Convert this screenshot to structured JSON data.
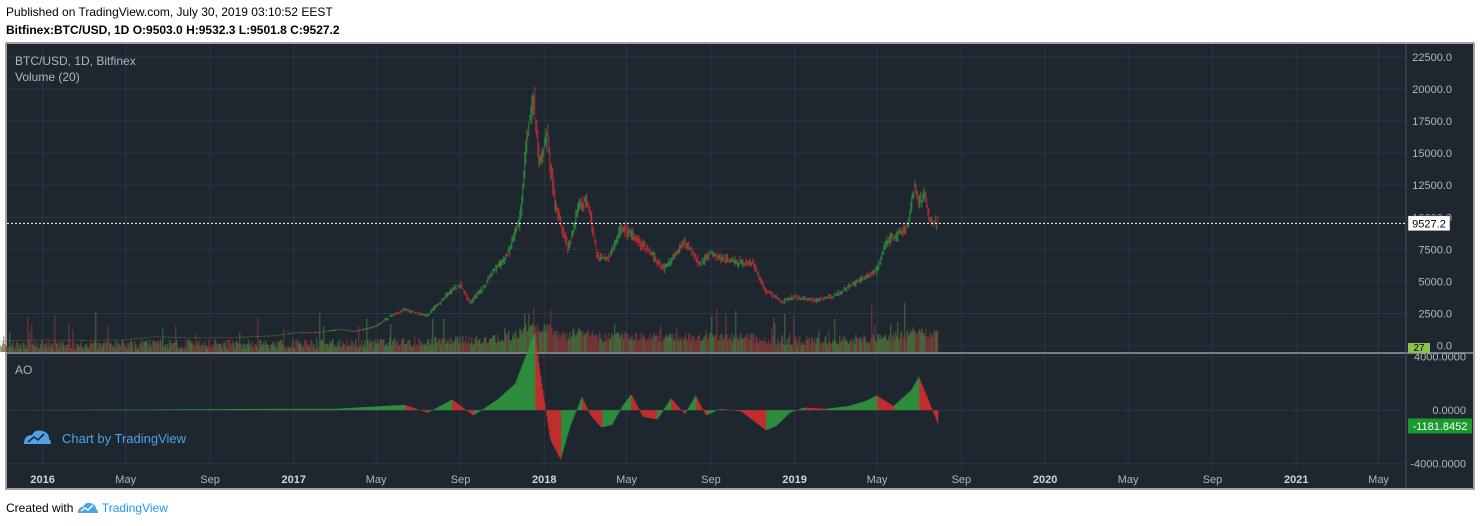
{
  "header": {
    "published": "Published on TradingView.com, July 30, 2019 03:10:52 EEST",
    "symbol": "Bitfinex:BTC/USD, 1D",
    "o_label": "O:",
    "o": "9503.0",
    "h_label": "H:",
    "h": "9532.3",
    "l_label": "L:",
    "l": "9501.8",
    "c_label": "C:",
    "c": "9527.2"
  },
  "panes": {
    "main_title": "BTC/USD, 1D, Bitfinex",
    "volume_title": "Volume (20)",
    "ao_title": "AO"
  },
  "watermark": "Chart by TradingView",
  "footer": {
    "created_with": "Created with",
    "brand": "TradingView"
  },
  "colors": {
    "background": "#1e2630",
    "grid": "#2c3541",
    "up": "#2e9a3e",
    "down": "#d32f2f",
    "price_label": "#ffffff",
    "ao_label": "#1a9a2c",
    "axis_text": "#b2b5be"
  },
  "chart_data": [
    {
      "type": "candlestick",
      "title": "BTC/USD, 1D, Bitfinex",
      "y_axis_ticks": [
        0.0,
        2500.0,
        5000.0,
        7500.0,
        10000.0,
        12500.0,
        15000.0,
        17500.0,
        20000.0,
        22500.0
      ],
      "ylim": [
        -500,
        23500
      ],
      "last_price": 9527.2,
      "last_price_label": "9527.2",
      "x_axis_labels": [
        "2016",
        "May",
        "Sep",
        "2017",
        "May",
        "Sep",
        "2018",
        "May",
        "Sep",
        "2019",
        "May",
        "Sep",
        "2020",
        "May",
        "Sep",
        "2021",
        "May"
      ],
      "x_axis_bold": [
        "2016",
        "2017",
        "2018",
        "2019",
        "2020",
        "2021"
      ],
      "series": [
        {
          "x": [
            "2015-11-01",
            "2015-12-01",
            "2016-01-01",
            "2016-03-01",
            "2016-05-01",
            "2016-06-15",
            "2016-08-01",
            "2016-10-01",
            "2016-12-01",
            "2017-01-05",
            "2017-02-01",
            "2017-03-10",
            "2017-04-01",
            "2017-05-01",
            "2017-05-25",
            "2017-06-12",
            "2017-07-15",
            "2017-08-15",
            "2017-09-01",
            "2017-09-15",
            "2017-10-01",
            "2017-10-20",
            "2017-11-10",
            "2017-11-28",
            "2017-12-07",
            "2017-12-17",
            "2017-12-25",
            "2018-01-06",
            "2018-01-17",
            "2018-02-06",
            "2018-02-20",
            "2018-03-05",
            "2018-03-20",
            "2018-04-06",
            "2018-04-25",
            "2018-05-15",
            "2018-06-01",
            "2018-06-25",
            "2018-07-25",
            "2018-08-15",
            "2018-09-01",
            "2018-10-01",
            "2018-11-01",
            "2018-11-20",
            "2018-12-15",
            "2019-01-01",
            "2019-02-01",
            "2019-03-01",
            "2019-04-03",
            "2019-05-01",
            "2019-05-15",
            "2019-06-01",
            "2019-06-15",
            "2019-06-26",
            "2019-07-02",
            "2019-07-10",
            "2019-07-17",
            "2019-07-30"
          ],
          "values": [
            330,
            420,
            430,
            420,
            450,
            700,
            600,
            610,
            760,
            1000,
            1000,
            1250,
            1100,
            1500,
            2400,
            2800,
            2300,
            4100,
            4800,
            3300,
            4300,
            5800,
            7200,
            10000,
            16000,
            19500,
            14000,
            16500,
            11000,
            7500,
            10800,
            11400,
            7000,
            6800,
            9300,
            8300,
            7500,
            6000,
            8100,
            6400,
            7200,
            6600,
            6400,
            4300,
            3400,
            3800,
            3500,
            3900,
            5000,
            5800,
            8000,
            8600,
            9300,
            12500,
            10800,
            12200,
            9700,
            9527
          ]
        }
      ]
    },
    {
      "type": "bar",
      "title": "Volume (20)",
      "value_label": "27"
    },
    {
      "type": "bar",
      "title": "AO",
      "y_axis_ticks": [
        4000.0,
        0.0,
        -4000.0
      ],
      "ylim": [
        -4400,
        4200
      ],
      "last_value": -1181.8452,
      "last_value_label": "-1181.8452",
      "series": [
        {
          "x": [
            "2015-11-01",
            "2016-06-15",
            "2016-12-01",
            "2017-03-01",
            "2017-06-12",
            "2017-07-15",
            "2017-08-20",
            "2017-09-20",
            "2017-10-25",
            "2017-11-20",
            "2017-12-18",
            "2017-12-28",
            "2018-01-10",
            "2018-01-25",
            "2018-02-08",
            "2018-02-25",
            "2018-03-10",
            "2018-03-25",
            "2018-04-10",
            "2018-04-25",
            "2018-05-08",
            "2018-05-25",
            "2018-06-15",
            "2018-07-05",
            "2018-07-25",
            "2018-08-10",
            "2018-08-25",
            "2018-09-15",
            "2018-10-15",
            "2018-11-20",
            "2018-12-05",
            "2018-12-25",
            "2019-01-15",
            "2019-02-15",
            "2019-03-20",
            "2019-04-15",
            "2019-05-01",
            "2019-05-25",
            "2019-06-20",
            "2019-07-01",
            "2019-07-15",
            "2019-07-30"
          ],
          "values": [
            0,
            50,
            100,
            100,
            400,
            -200,
            800,
            -400,
            800,
            2000,
            5800,
            2200,
            -2200,
            -3700,
            -1200,
            1000,
            -400,
            -1300,
            -1100,
            300,
            1200,
            -500,
            -700,
            900,
            -300,
            1100,
            -400,
            100,
            -100,
            -1500,
            -1200,
            -200,
            200,
            100,
            300,
            700,
            1100,
            300,
            1500,
            2500,
            800,
            -1182
          ]
        }
      ]
    }
  ]
}
